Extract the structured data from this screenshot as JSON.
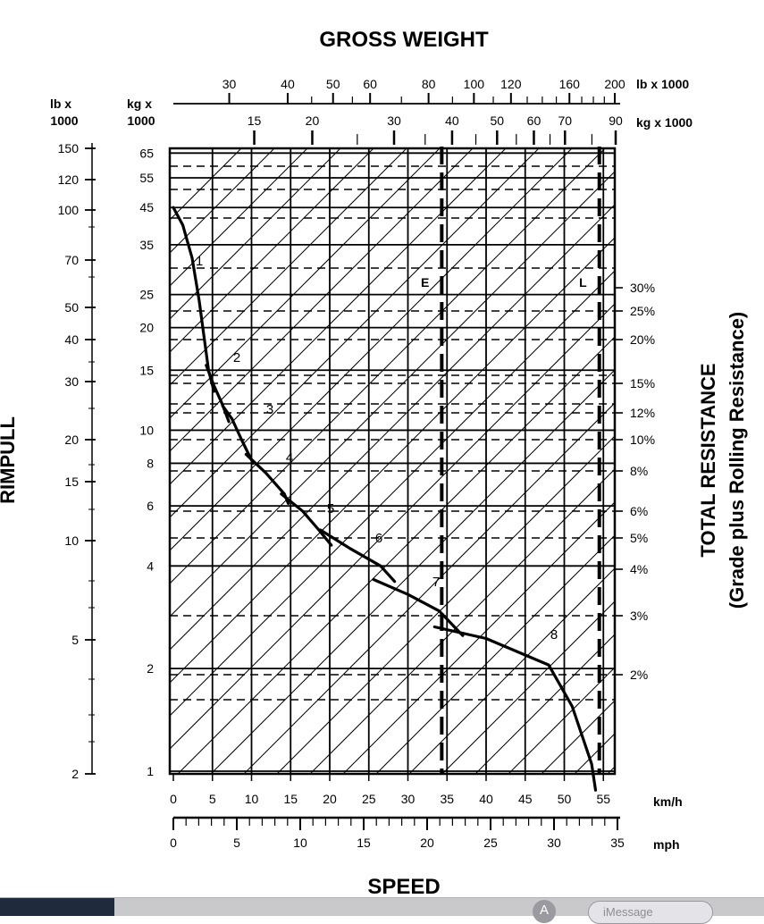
{
  "chart_data": {
    "type": "line",
    "title": "GROSS WEIGHT",
    "xlabel": "SPEED",
    "ylabel_left": "RIMPULL",
    "ylabel_right": "TOTAL RESISTANCE",
    "ylabel_right_sub": "(Grade plus Rolling Resistance)",
    "x_axis_kmh": {
      "unit": "km/h",
      "range": [
        0,
        55
      ],
      "ticks": [
        "0",
        "5",
        "10",
        "15",
        "20",
        "25",
        "30",
        "35",
        "40",
        "45",
        "50",
        "55"
      ]
    },
    "x_axis_mph": {
      "unit": "mph",
      "range": [
        0,
        35
      ],
      "ticks": [
        "0",
        "5",
        "10",
        "15",
        "20",
        "25",
        "30",
        "35"
      ]
    },
    "y_axis_lb": {
      "unit_line1": "lb x",
      "unit_line2": "1000",
      "ticks": [
        "150",
        "120",
        "100",
        "70",
        "50",
        "40",
        "30",
        "20",
        "15",
        "10",
        "5",
        "2"
      ]
    },
    "y_axis_kg": {
      "unit_line1": "kg x",
      "unit_line2": "1000",
      "ticks": [
        "65",
        "55",
        "45",
        "35",
        "25",
        "20",
        "15",
        "10",
        "8",
        "6",
        "4",
        "2",
        "1"
      ]
    },
    "gross_weight_lb": {
      "unit": "lb x 1000",
      "ticks": [
        "30",
        "40",
        "50",
        "60",
        "80",
        "100",
        "120",
        "160",
        "200"
      ]
    },
    "gross_weight_kg": {
      "unit": "kg x 1000",
      "ticks": [
        "15",
        "20",
        "30",
        "40",
        "50",
        "60",
        "70",
        "90"
      ]
    },
    "total_resistance": {
      "ticks": [
        "30%",
        "25%",
        "20%",
        "15%",
        "12%",
        "10%",
        "8%",
        "6%",
        "5%",
        "4%",
        "3%",
        "2%"
      ]
    },
    "reference_lines": [
      {
        "label": "E",
        "gross_weight_kg": 38
      },
      {
        "label": "L",
        "gross_weight_kg": 83
      }
    ],
    "gears": [
      "1",
      "2",
      "3",
      "4",
      "5",
      "6",
      "7",
      "8"
    ],
    "series": [
      {
        "name": "1",
        "points": [
          [
            0,
            45
          ],
          [
            1.2,
            40
          ],
          [
            2.4,
            32
          ],
          [
            3.3,
            24
          ],
          [
            3.9,
            19
          ],
          [
            4.5,
            15
          ],
          [
            5.2,
            13
          ]
        ]
      },
      {
        "name": "2",
        "points": [
          [
            4.2,
            15.5
          ],
          [
            5.2,
            13.5
          ],
          [
            6.2,
            12
          ],
          [
            7.1,
            10.6
          ]
        ]
      },
      {
        "name": "3",
        "points": [
          [
            6.3,
            11.8
          ],
          [
            7.5,
            10.8
          ],
          [
            8.8,
            9.3
          ],
          [
            10.2,
            8
          ]
        ]
      },
      {
        "name": "4",
        "points": [
          [
            9.3,
            8.5
          ],
          [
            11.8,
            7.5
          ],
          [
            14.2,
            6.5
          ],
          [
            14.7,
            6.1
          ]
        ]
      },
      {
        "name": "5",
        "points": [
          [
            13.8,
            6.5
          ],
          [
            16.5,
            5.8
          ],
          [
            18.6,
            5.1
          ],
          [
            20.2,
            4.6
          ]
        ]
      },
      {
        "name": "6",
        "points": [
          [
            18.8,
            5.1
          ],
          [
            22.6,
            4.5
          ],
          [
            26.5,
            4
          ],
          [
            28.3,
            3.6
          ]
        ]
      },
      {
        "name": "7",
        "points": [
          [
            25.6,
            3.65
          ],
          [
            30,
            3.3
          ],
          [
            34,
            2.95
          ],
          [
            37,
            2.5
          ]
        ]
      },
      {
        "name": "8",
        "points": [
          [
            33.4,
            2.65
          ],
          [
            40,
            2.45
          ],
          [
            48,
            2.05
          ],
          [
            51,
            1.55
          ],
          [
            53.5,
            1.05
          ],
          [
            54,
            0.88
          ]
        ]
      }
    ]
  },
  "taskbar": {
    "app_icon": "app-store-icon",
    "imessage_placeholder": "iMessage"
  }
}
